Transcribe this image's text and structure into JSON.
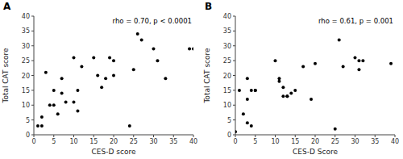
{
  "chart_data": [
    {
      "type": "scatter",
      "title": "A",
      "annotations": [
        "rho = 0.70, p < 0.0001"
      ],
      "x": [
        1,
        2,
        2,
        3,
        4,
        5,
        5,
        6,
        7,
        7,
        8,
        10,
        10,
        11,
        11,
        12,
        15,
        16,
        17,
        18,
        19,
        20,
        20,
        24,
        25,
        26,
        27,
        30,
        31,
        33,
        39,
        40
      ],
      "values": [
        3,
        3,
        6,
        21,
        10,
        10,
        15,
        7,
        14,
        19,
        11,
        11,
        26,
        8,
        15,
        23,
        26,
        20,
        16,
        19,
        26,
        20,
        25,
        3,
        22,
        34,
        32,
        29,
        25,
        19,
        29,
        29
      ],
      "xlabel": "CES-D score",
      "ylabel": "Total CAT score",
      "xlim": [
        0,
        40
      ],
      "ylim": [
        0,
        40
      ],
      "xticks": [
        0,
        5,
        10,
        15,
        20,
        25,
        30,
        35,
        40
      ],
      "yticks": [
        0,
        5,
        10,
        15,
        20,
        25,
        30,
        35,
        40
      ],
      "color": "#000000"
    },
    {
      "type": "scatter",
      "title": "B",
      "annotations": [
        "rho = 0.61, p = 0.001"
      ],
      "x": [
        0,
        1,
        2,
        3,
        3,
        3,
        4,
        4,
        5,
        5,
        10,
        11,
        11,
        12,
        12,
        13,
        13,
        14,
        15,
        17,
        19,
        20,
        25,
        26,
        27,
        30,
        31,
        31,
        32,
        39
      ],
      "values": [
        1,
        15,
        7,
        4,
        12,
        19,
        3,
        15,
        15,
        15,
        25,
        18,
        19,
        13,
        16,
        13,
        13,
        14,
        15,
        23,
        12,
        24,
        2,
        32,
        23,
        26,
        22,
        25,
        25,
        24
      ],
      "xlabel": "CES-D Score",
      "ylabel": "Total CAT score",
      "xlim": [
        0,
        40
      ],
      "ylim": [
        0,
        40
      ],
      "xticks": [
        0,
        5,
        10,
        15,
        20,
        25,
        30,
        35,
        40
      ],
      "yticks": [
        0,
        5,
        10,
        15,
        20,
        25,
        30,
        35,
        40
      ],
      "color": "#000000"
    }
  ]
}
